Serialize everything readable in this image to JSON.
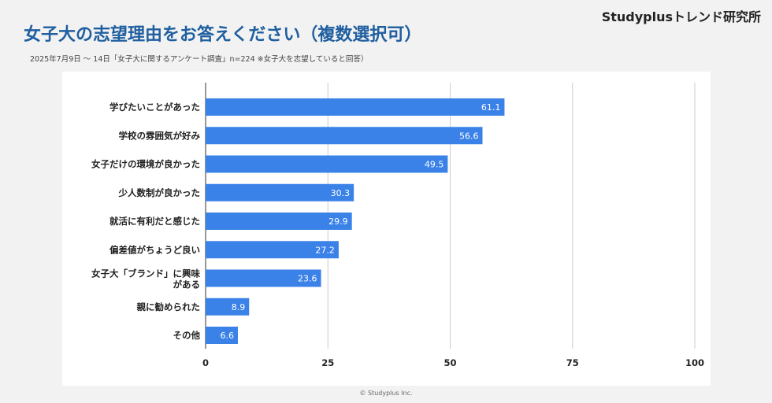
{
  "header": {
    "brand": "Studyplusトレンド研究所",
    "title": "女子大の志望理由をお答えください（複数選択可）",
    "subtitle": "2025年7月9日 〜 14日「女子大に関するアンケート調査」n=224 ※女子大を志望していると回答）"
  },
  "footer": {
    "copyright": "© Studyplus Inc."
  },
  "colors": {
    "bar": "#3b82e8",
    "title": "#1f5fa0",
    "grid": "#cccccc"
  },
  "chart_data": {
    "type": "bar",
    "orientation": "horizontal",
    "categories": [
      "学びたいことがあった",
      "学校の雰囲気が好み",
      "女子だけの環境が良かった",
      "少人数制が良かった",
      "就活に有利だと感じた",
      "偏差値がちょうど良い",
      "女子大「ブランド」に興味がある",
      "親に勧められた",
      "その他"
    ],
    "values": [
      61.1,
      56.6,
      49.5,
      30.3,
      29.9,
      27.2,
      23.6,
      8.9,
      6.6
    ],
    "xlim": [
      0,
      100
    ],
    "xticks": [
      0,
      25,
      50,
      75,
      100
    ],
    "grid": true
  }
}
